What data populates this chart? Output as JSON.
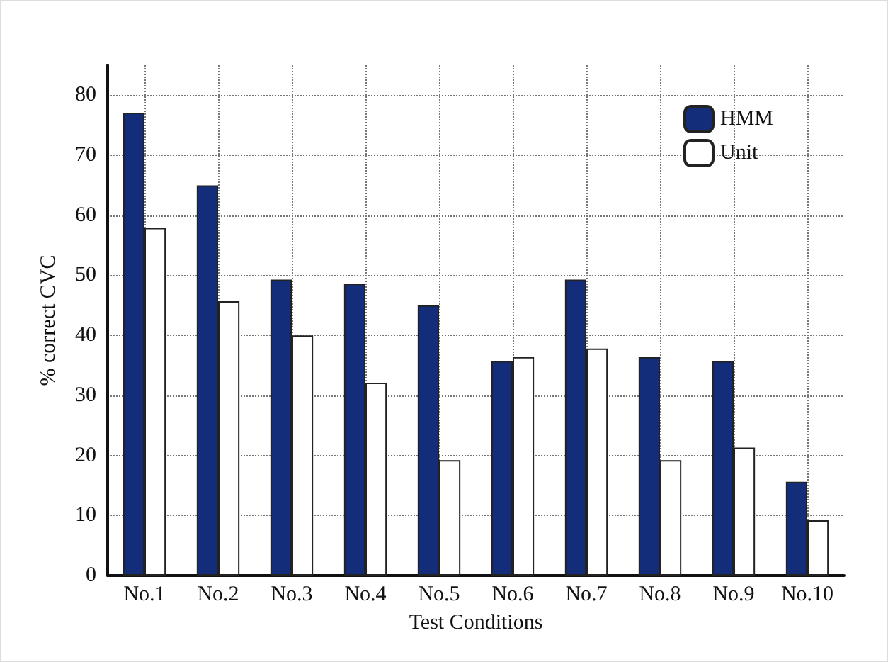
{
  "chart_data": {
    "type": "bar",
    "xlabel": "Test Conditions",
    "ylabel": "% correct CVC",
    "categories": [
      "No.1",
      "No.2",
      "No.3",
      "No.4",
      "No.5",
      "No.6",
      "No.7",
      "No.8",
      "No.9",
      "No.10"
    ],
    "series": [
      {
        "name": "HMM",
        "color": "#142d7a",
        "values": [
          77.1,
          65.0,
          49.3,
          48.6,
          45.0,
          35.7,
          49.3,
          36.4,
          35.7,
          15.6
        ]
      },
      {
        "name": "Unit",
        "color": "#ffffff",
        "values": [
          57.9,
          45.7,
          40.0,
          32.1,
          19.2,
          36.4,
          37.8,
          19.2,
          21.3,
          9.2
        ]
      }
    ],
    "ylim": [
      0,
      85
    ],
    "yticks": [
      0,
      10,
      20,
      30,
      40,
      50,
      60,
      70,
      80
    ],
    "grid": true,
    "legend": "top right"
  }
}
